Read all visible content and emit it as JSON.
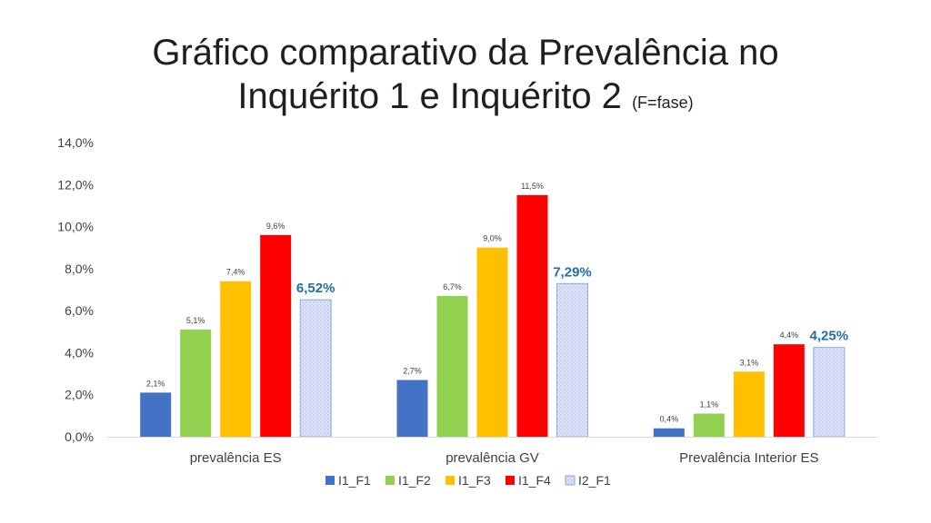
{
  "title": {
    "line1": "Gráfico comparativo da Prevalência no",
    "line2": "Inquérito 1 e Inquérito 2",
    "note": "(F=fase)"
  },
  "chart_data": {
    "type": "bar",
    "ylim": [
      0,
      14
    ],
    "yticks": [
      0,
      2,
      4,
      6,
      8,
      10,
      12,
      14
    ],
    "ytick_labels": [
      "0,0%",
      "2,0%",
      "4,0%",
      "6,0%",
      "8,0%",
      "10,0%",
      "12,0%",
      "14,0%"
    ],
    "categories": [
      "prevalência ES",
      "prevalência GV",
      "Prevalência Interior ES"
    ],
    "legend_position": "bottom",
    "grid": false,
    "series": [
      {
        "name": "I1_F1",
        "color": "#4472c4",
        "pattern": false,
        "values": [
          2.1,
          2.7,
          0.4
        ],
        "labels": [
          "2,1%",
          "2,7%",
          "0,4%"
        ]
      },
      {
        "name": "I1_F2",
        "color": "#92d050",
        "pattern": false,
        "values": [
          5.1,
          6.7,
          1.1
        ],
        "labels": [
          "5,1%",
          "6,7%",
          "1,1%"
        ]
      },
      {
        "name": "I1_F3",
        "color": "#ffc000",
        "pattern": false,
        "values": [
          7.4,
          9.0,
          3.1
        ],
        "labels": [
          "7,4%",
          "9,0%",
          "3,1%"
        ]
      },
      {
        "name": "I1_F4",
        "color": "#ff0000",
        "pattern": false,
        "values": [
          9.6,
          11.5,
          4.4
        ],
        "labels": [
          "9,6%",
          "11,5%",
          "4,4%"
        ]
      },
      {
        "name": "I2_F1",
        "color": "#c9d7f2",
        "pattern": true,
        "values": [
          6.52,
          7.29,
          4.25
        ],
        "labels": [
          "6,52%",
          "7,29%",
          "4,25%"
        ]
      }
    ]
  }
}
